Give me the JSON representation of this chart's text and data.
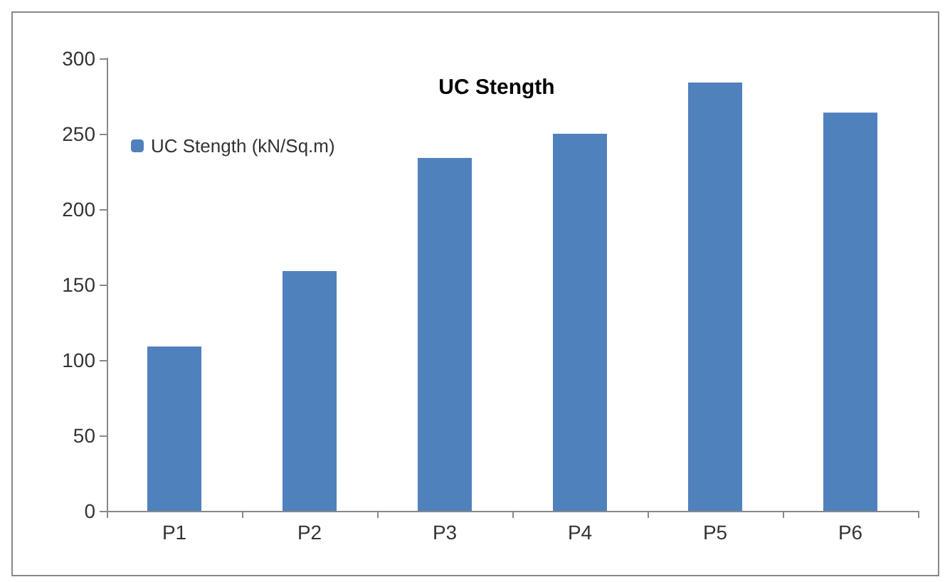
{
  "chart_data": {
    "type": "bar",
    "title": "UC Stength",
    "categories": [
      "P1",
      "P2",
      "P3",
      "P4",
      "P5",
      "P6"
    ],
    "series": [
      {
        "name": "UC Stength (kN/Sq.m)",
        "color": "#4f81bd",
        "values": [
          109,
          159,
          234,
          250,
          284,
          264
        ]
      }
    ],
    "ylim": [
      0,
      300
    ],
    "yticks": [
      0,
      50,
      100,
      150,
      200,
      250,
      300
    ],
    "grid": false,
    "legend": "top left"
  }
}
